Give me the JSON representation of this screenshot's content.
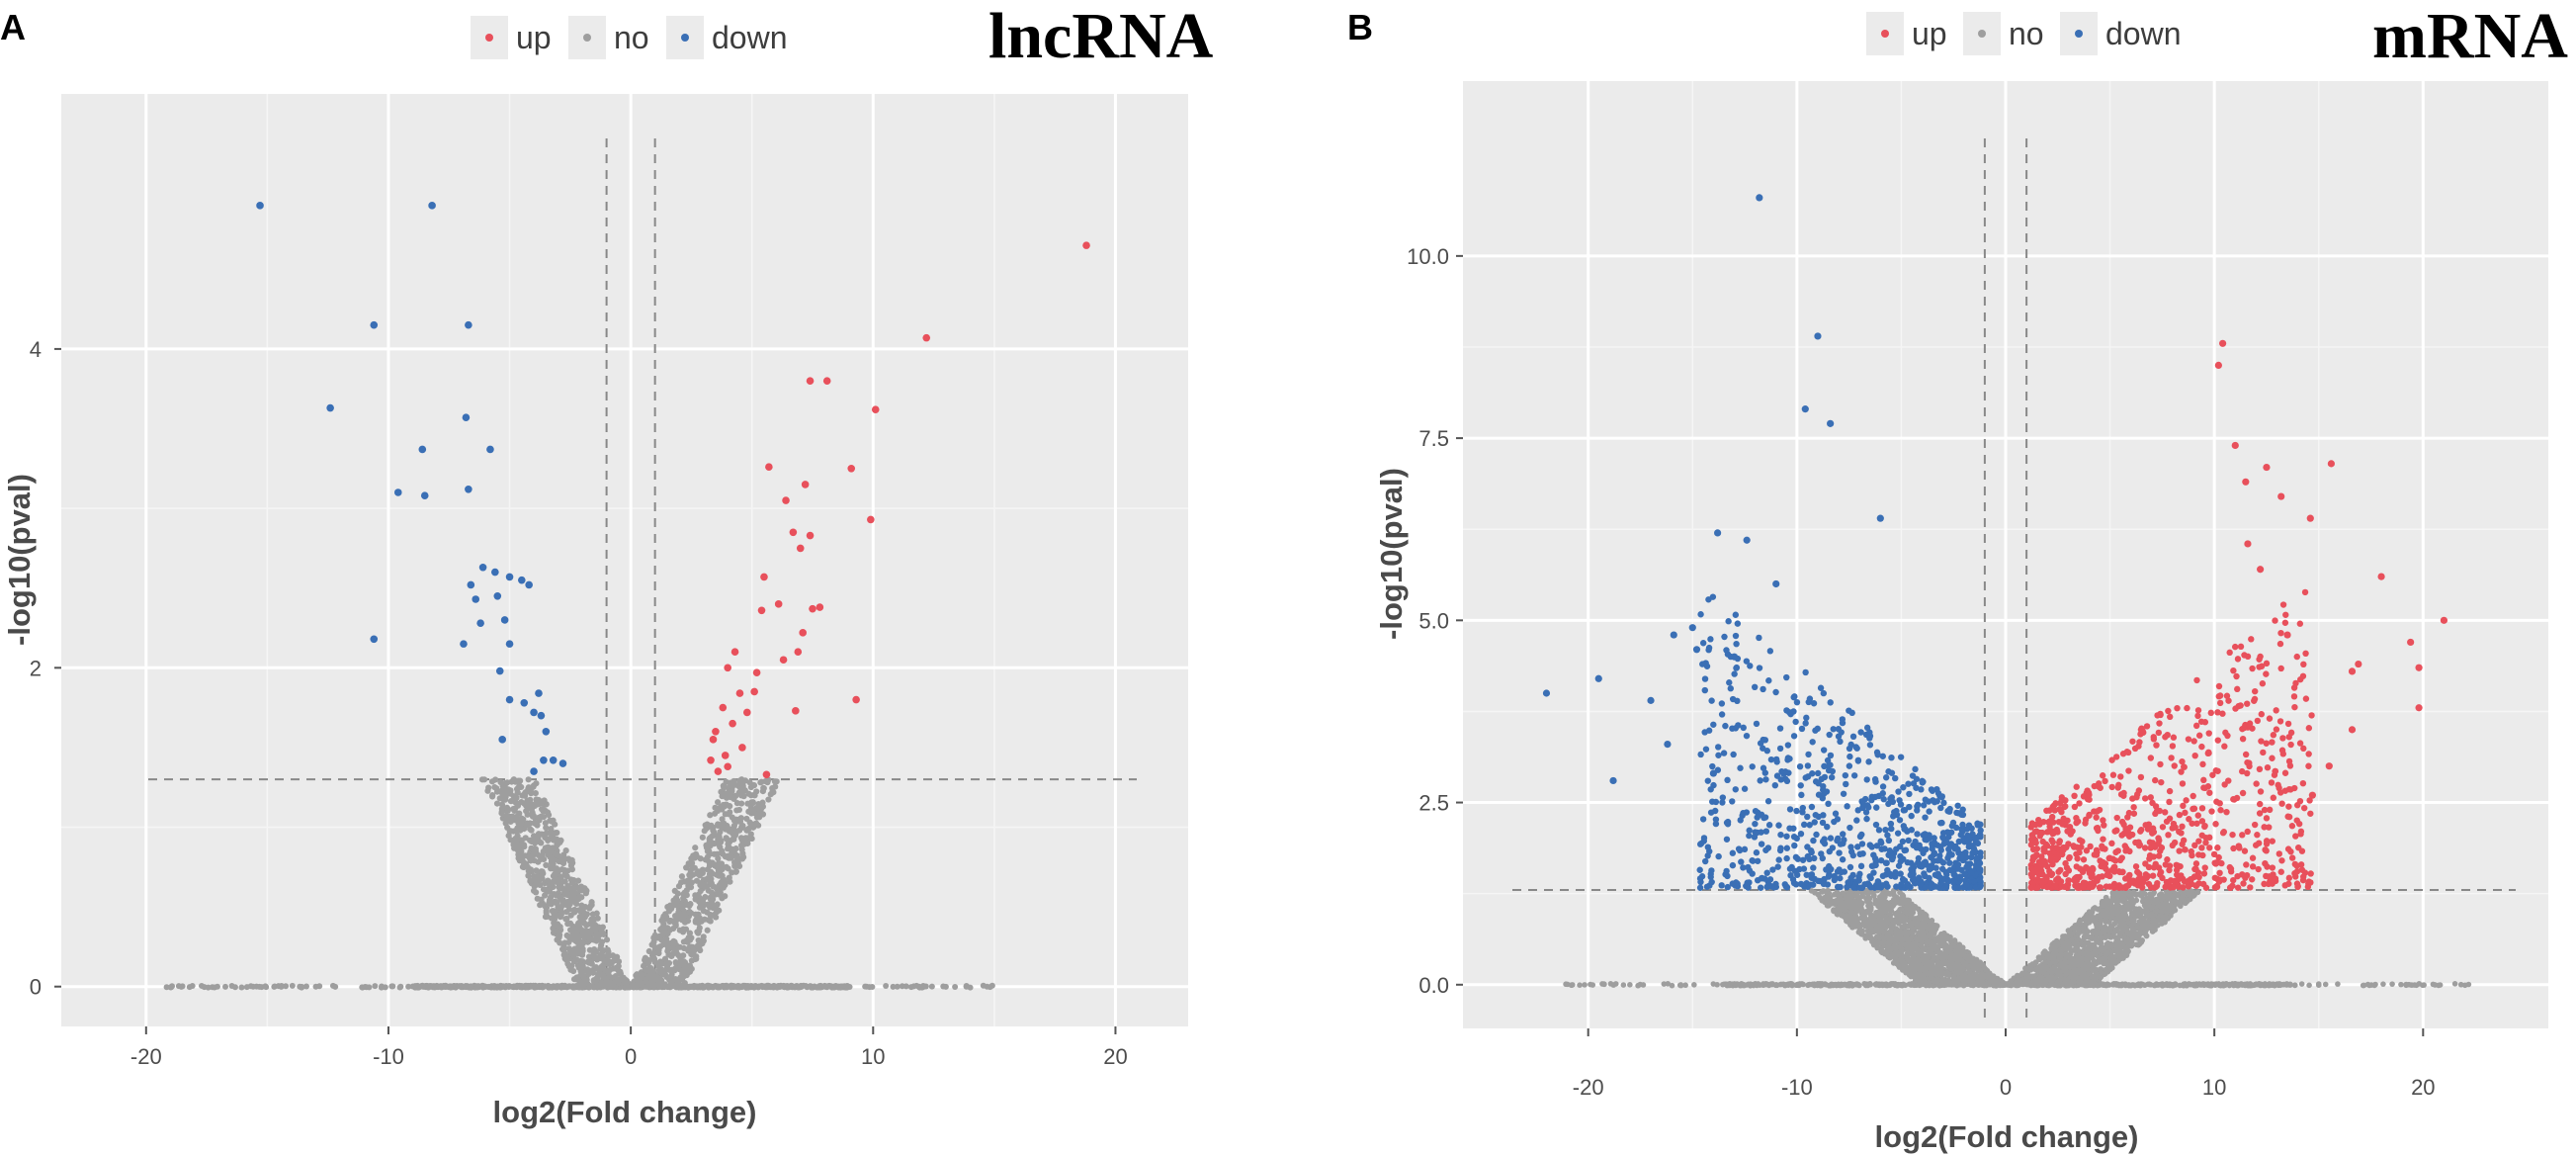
{
  "chart_data": [
    {
      "type": "scatter",
      "panel_label": "A",
      "title": "lncRNA",
      "xlabel": "log2(Fold change)",
      "ylabel": "-log10(pval)",
      "xlim": [
        -23.5,
        23
      ],
      "ylim": [
        -0.25,
        5.6
      ],
      "xticks": [
        -20,
        -10,
        0,
        10,
        20
      ],
      "xtick_labels": [
        "-20",
        "-10",
        "0",
        "10",
        "20"
      ],
      "yticks": [
        0,
        2,
        4
      ],
      "ytick_labels": [
        "0",
        "2",
        "4"
      ],
      "grid": true,
      "legend": [
        {
          "name": "up",
          "color": "#e8505b"
        },
        {
          "name": "no",
          "color": "#9e9e9e"
        },
        {
          "name": "down",
          "color": "#3a6fb5"
        }
      ],
      "legend_position": "top",
      "thresholds": {
        "fold_change_x": [
          -1,
          1
        ],
        "pval_y": 1.3
      },
      "series": [
        {
          "name": "up",
          "color": "#e8505b",
          "points": [
            [
              18.8,
              4.65
            ],
            [
              12.2,
              4.07
            ],
            [
              10.1,
              3.62
            ],
            [
              8.1,
              3.8
            ],
            [
              7.4,
              3.8
            ],
            [
              9.1,
              3.25
            ],
            [
              9.9,
              2.93
            ],
            [
              5.7,
              3.26
            ],
            [
              7.2,
              3.15
            ],
            [
              6.4,
              3.05
            ],
            [
              6.7,
              2.85
            ],
            [
              7.4,
              2.83
            ],
            [
              7.0,
              2.75
            ],
            [
              5.5,
              2.57
            ],
            [
              6.1,
              2.4
            ],
            [
              7.8,
              2.38
            ],
            [
              7.5,
              2.37
            ],
            [
              7.1,
              2.22
            ],
            [
              5.4,
              2.36
            ],
            [
              4.3,
              2.1
            ],
            [
              6.3,
              2.05
            ],
            [
              6.9,
              2.1
            ],
            [
              4.0,
              2.0
            ],
            [
              5.2,
              1.97
            ],
            [
              4.5,
              1.84
            ],
            [
              5.1,
              1.85
            ],
            [
              3.8,
              1.75
            ],
            [
              4.8,
              1.72
            ],
            [
              6.8,
              1.73
            ],
            [
              9.3,
              1.8
            ],
            [
              3.5,
              1.6
            ],
            [
              4.2,
              1.65
            ],
            [
              3.4,
              1.55
            ],
            [
              4.6,
              1.5
            ],
            [
              3.9,
              1.45
            ],
            [
              5.6,
              1.33
            ],
            [
              3.3,
              1.42
            ],
            [
              4.0,
              1.38
            ],
            [
              3.6,
              1.35
            ]
          ]
        },
        {
          "name": "down",
          "color": "#3a6fb5",
          "points": [
            [
              -15.3,
              4.9
            ],
            [
              -8.2,
              4.9
            ],
            [
              -10.6,
              4.15
            ],
            [
              -6.7,
              4.15
            ],
            [
              -12.4,
              3.63
            ],
            [
              -6.8,
              3.57
            ],
            [
              -8.6,
              3.37
            ],
            [
              -5.8,
              3.37
            ],
            [
              -9.6,
              3.1
            ],
            [
              -8.5,
              3.08
            ],
            [
              -6.7,
              3.12
            ],
            [
              -6.1,
              2.63
            ],
            [
              -5.6,
              2.6
            ],
            [
              -5.0,
              2.57
            ],
            [
              -4.5,
              2.55
            ],
            [
              -4.2,
              2.52
            ],
            [
              -6.6,
              2.52
            ],
            [
              -5.5,
              2.45
            ],
            [
              -6.4,
              2.43
            ],
            [
              -5.2,
              2.3
            ],
            [
              -6.2,
              2.28
            ],
            [
              -5.0,
              2.15
            ],
            [
              -6.9,
              2.15
            ],
            [
              -10.6,
              2.18
            ],
            [
              -5.4,
              1.98
            ],
            [
              -3.8,
              1.84
            ],
            [
              -5.0,
              1.8
            ],
            [
              -4.4,
              1.78
            ],
            [
              -4.0,
              1.72
            ],
            [
              -3.7,
              1.7
            ],
            [
              -3.5,
              1.6
            ],
            [
              -5.3,
              1.55
            ],
            [
              -3.2,
              1.42
            ],
            [
              -3.6,
              1.42
            ],
            [
              -2.8,
              1.4
            ],
            [
              -4.0,
              1.35
            ]
          ]
        },
        {
          "name": "no",
          "color": "#9e9e9e",
          "distribution": "V-shaped cloud of points with -log10(pval) below 1.3 plus baseline points at 0",
          "x_range": [
            -19.5,
            15
          ]
        }
      ]
    },
    {
      "type": "scatter",
      "panel_label": "B",
      "title": "mRNA",
      "xlabel": "log2(Fold change)",
      "ylabel": "-log10(pval)",
      "xlim": [
        -26,
        26
      ],
      "ylim": [
        -0.6,
        12.4
      ],
      "xticks": [
        -20,
        -10,
        0,
        10,
        20
      ],
      "xtick_labels": [
        "-20",
        "-10",
        "0",
        "10",
        "20"
      ],
      "yticks": [
        0,
        2.5,
        5,
        7.5,
        10
      ],
      "ytick_labels": [
        "0.0",
        "2.5",
        "5.0",
        "7.5",
        "10.0"
      ],
      "grid": true,
      "legend": [
        {
          "name": "up",
          "color": "#e8505b"
        },
        {
          "name": "no",
          "color": "#9e9e9e"
        },
        {
          "name": "down",
          "color": "#3a6fb5"
        }
      ],
      "legend_position": "top",
      "thresholds": {
        "fold_change_x": [
          -1,
          1
        ],
        "pval_y": 1.3
      },
      "series": [
        {
          "name": "up",
          "color": "#e8505b",
          "points": [
            [
              10.4,
              8.8
            ],
            [
              10.2,
              8.5
            ],
            [
              11.0,
              7.4
            ],
            [
              15.6,
              7.15
            ],
            [
              12.5,
              7.1
            ],
            [
              11.5,
              6.9
            ],
            [
              13.2,
              6.7
            ],
            [
              14.6,
              6.4
            ],
            [
              11.6,
              6.05
            ],
            [
              12.2,
              5.7
            ],
            [
              18.0,
              5.6
            ],
            [
              21.0,
              5.0
            ],
            [
              19.4,
              4.7
            ],
            [
              16.9,
              4.4
            ],
            [
              16.6,
              4.3
            ],
            [
              19.8,
              4.35
            ],
            [
              19.8,
              3.8
            ],
            [
              16.6,
              3.5
            ],
            [
              15.5,
              3.0
            ],
            [
              14.7,
              2.6
            ],
            [
              13.5,
              4.8
            ]
          ],
          "cloud": "dense cluster spreading from x≈1 to x≈15 above the 1.3 threshold"
        },
        {
          "name": "down",
          "color": "#3a6fb5",
          "points": [
            [
              -11.8,
              10.8
            ],
            [
              -9.0,
              8.9
            ],
            [
              -9.6,
              7.9
            ],
            [
              -8.4,
              7.7
            ],
            [
              -6.0,
              6.4
            ],
            [
              -13.8,
              6.2
            ],
            [
              -12.4,
              6.1
            ],
            [
              -22.0,
              4.0
            ],
            [
              -19.5,
              4.2
            ],
            [
              -18.8,
              2.8
            ],
            [
              -14.0,
              2.9
            ],
            [
              -16.2,
              3.3
            ],
            [
              -15.0,
              4.9
            ],
            [
              -14.8,
              4.6
            ],
            [
              -17.0,
              3.9
            ],
            [
              -15.9,
              4.8
            ],
            [
              -13.0,
              4.5
            ],
            [
              -11.0,
              5.5
            ]
          ],
          "cloud": "dense cluster spreading from x≈-1 to x≈-15 above the 1.3 threshold"
        },
        {
          "name": "no",
          "color": "#9e9e9e",
          "distribution": "V-shaped cloud of points with -log10(pval) below 1.3 plus baseline points at 0",
          "x_range": [
            -21.5,
            22.5
          ]
        }
      ]
    }
  ]
}
